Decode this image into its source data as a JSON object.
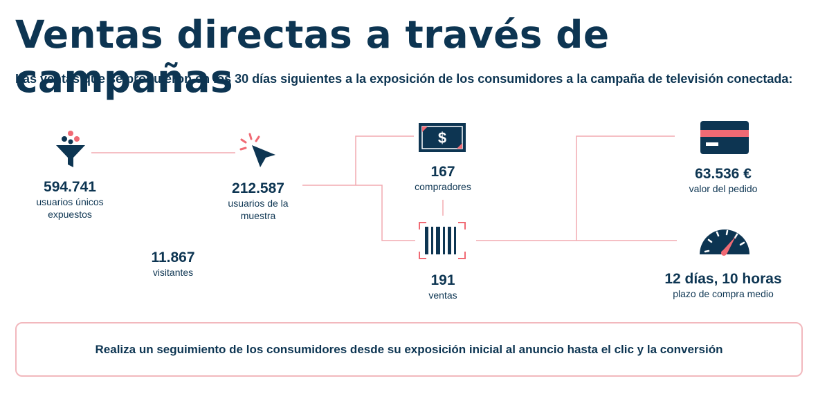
{
  "header": {
    "title": "Ventas directas a través de campañas",
    "subtitle": "Las ventas que se produjeron en los 30 días siguientes a la exposición de los consumidores a la campaña de televisión conectada:"
  },
  "colors": {
    "navy": "#0d3552",
    "coral": "#f06a74",
    "line": "#f2aab0"
  },
  "icons": {
    "funnel": "funnel-icon",
    "cursor": "cursor-click-icon",
    "dollar": "dollar-bill-icon",
    "barcode": "barcode-icon",
    "card": "credit-card-icon",
    "gauge": "speedometer-icon"
  },
  "stats": {
    "exposed": {
      "value": "594.741",
      "label": "usuarios únicos expuestos"
    },
    "sample": {
      "value": "212.587",
      "label": "usuarios de la muestra"
    },
    "visitors": {
      "value": "11.867",
      "label": "visitantes"
    },
    "buyers": {
      "value": "167",
      "label": "compradores"
    },
    "sales": {
      "value": "191",
      "label": "ventas"
    },
    "order_value": {
      "value": "63.536 €",
      "label": "valor del pedido"
    },
    "purchase_time": {
      "value": "12 días, 10 horas",
      "label": "plazo de compra medio"
    }
  },
  "banner": {
    "text": "Realiza un seguimiento de los consumidores desde su exposición inicial al anuncio hasta el clic y la conversión"
  }
}
